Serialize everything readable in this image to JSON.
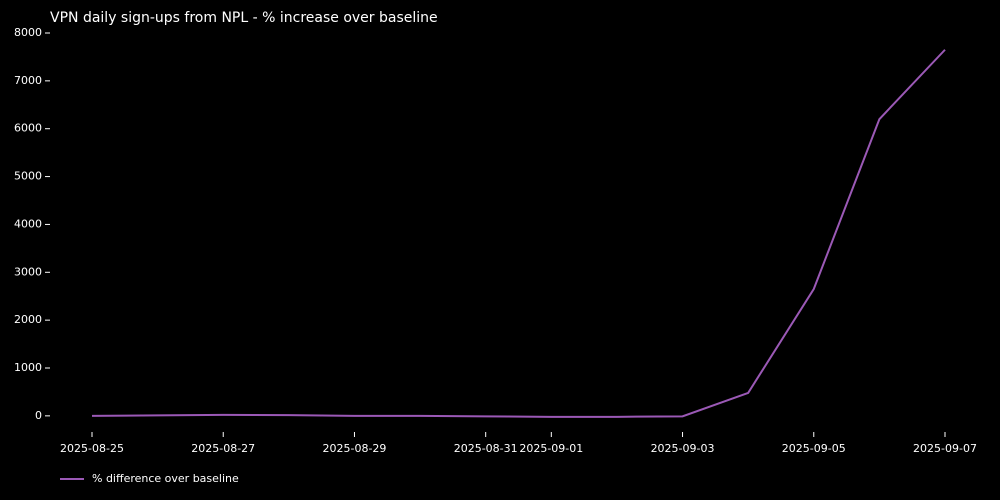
{
  "chart_data": {
    "type": "line",
    "title": "VPN daily sign-ups from NPL - % increase over baseline",
    "x": [
      "2025-08-25",
      "2025-08-26",
      "2025-08-27",
      "2025-08-28",
      "2025-08-29",
      "2025-08-30",
      "2025-08-31",
      "2025-09-01",
      "2025-09-02",
      "2025-09-03",
      "2025-09-04",
      "2025-09-05",
      "2025-09-06",
      "2025-09-07"
    ],
    "series": [
      {
        "name": "% difference over baseline",
        "color": "#9b59b6",
        "values": [
          0,
          10,
          20,
          15,
          0,
          0,
          -10,
          -20,
          -20,
          -10,
          480,
          2650,
          6200,
          7650
        ]
      }
    ],
    "xlim": [
      "2025-08-25",
      "2025-09-07"
    ],
    "xticks": [
      "2025-08-25",
      "2025-08-27",
      "2025-08-29",
      "2025-08-31",
      "2025-09-01",
      "2025-09-03",
      "2025-09-05",
      "2025-09-07"
    ],
    "ylim": [
      -400,
      8000
    ],
    "yticks": [
      0,
      1000,
      2000,
      3000,
      4000,
      5000,
      6000,
      7000,
      8000
    ],
    "grid": false,
    "legend": "lower left"
  }
}
